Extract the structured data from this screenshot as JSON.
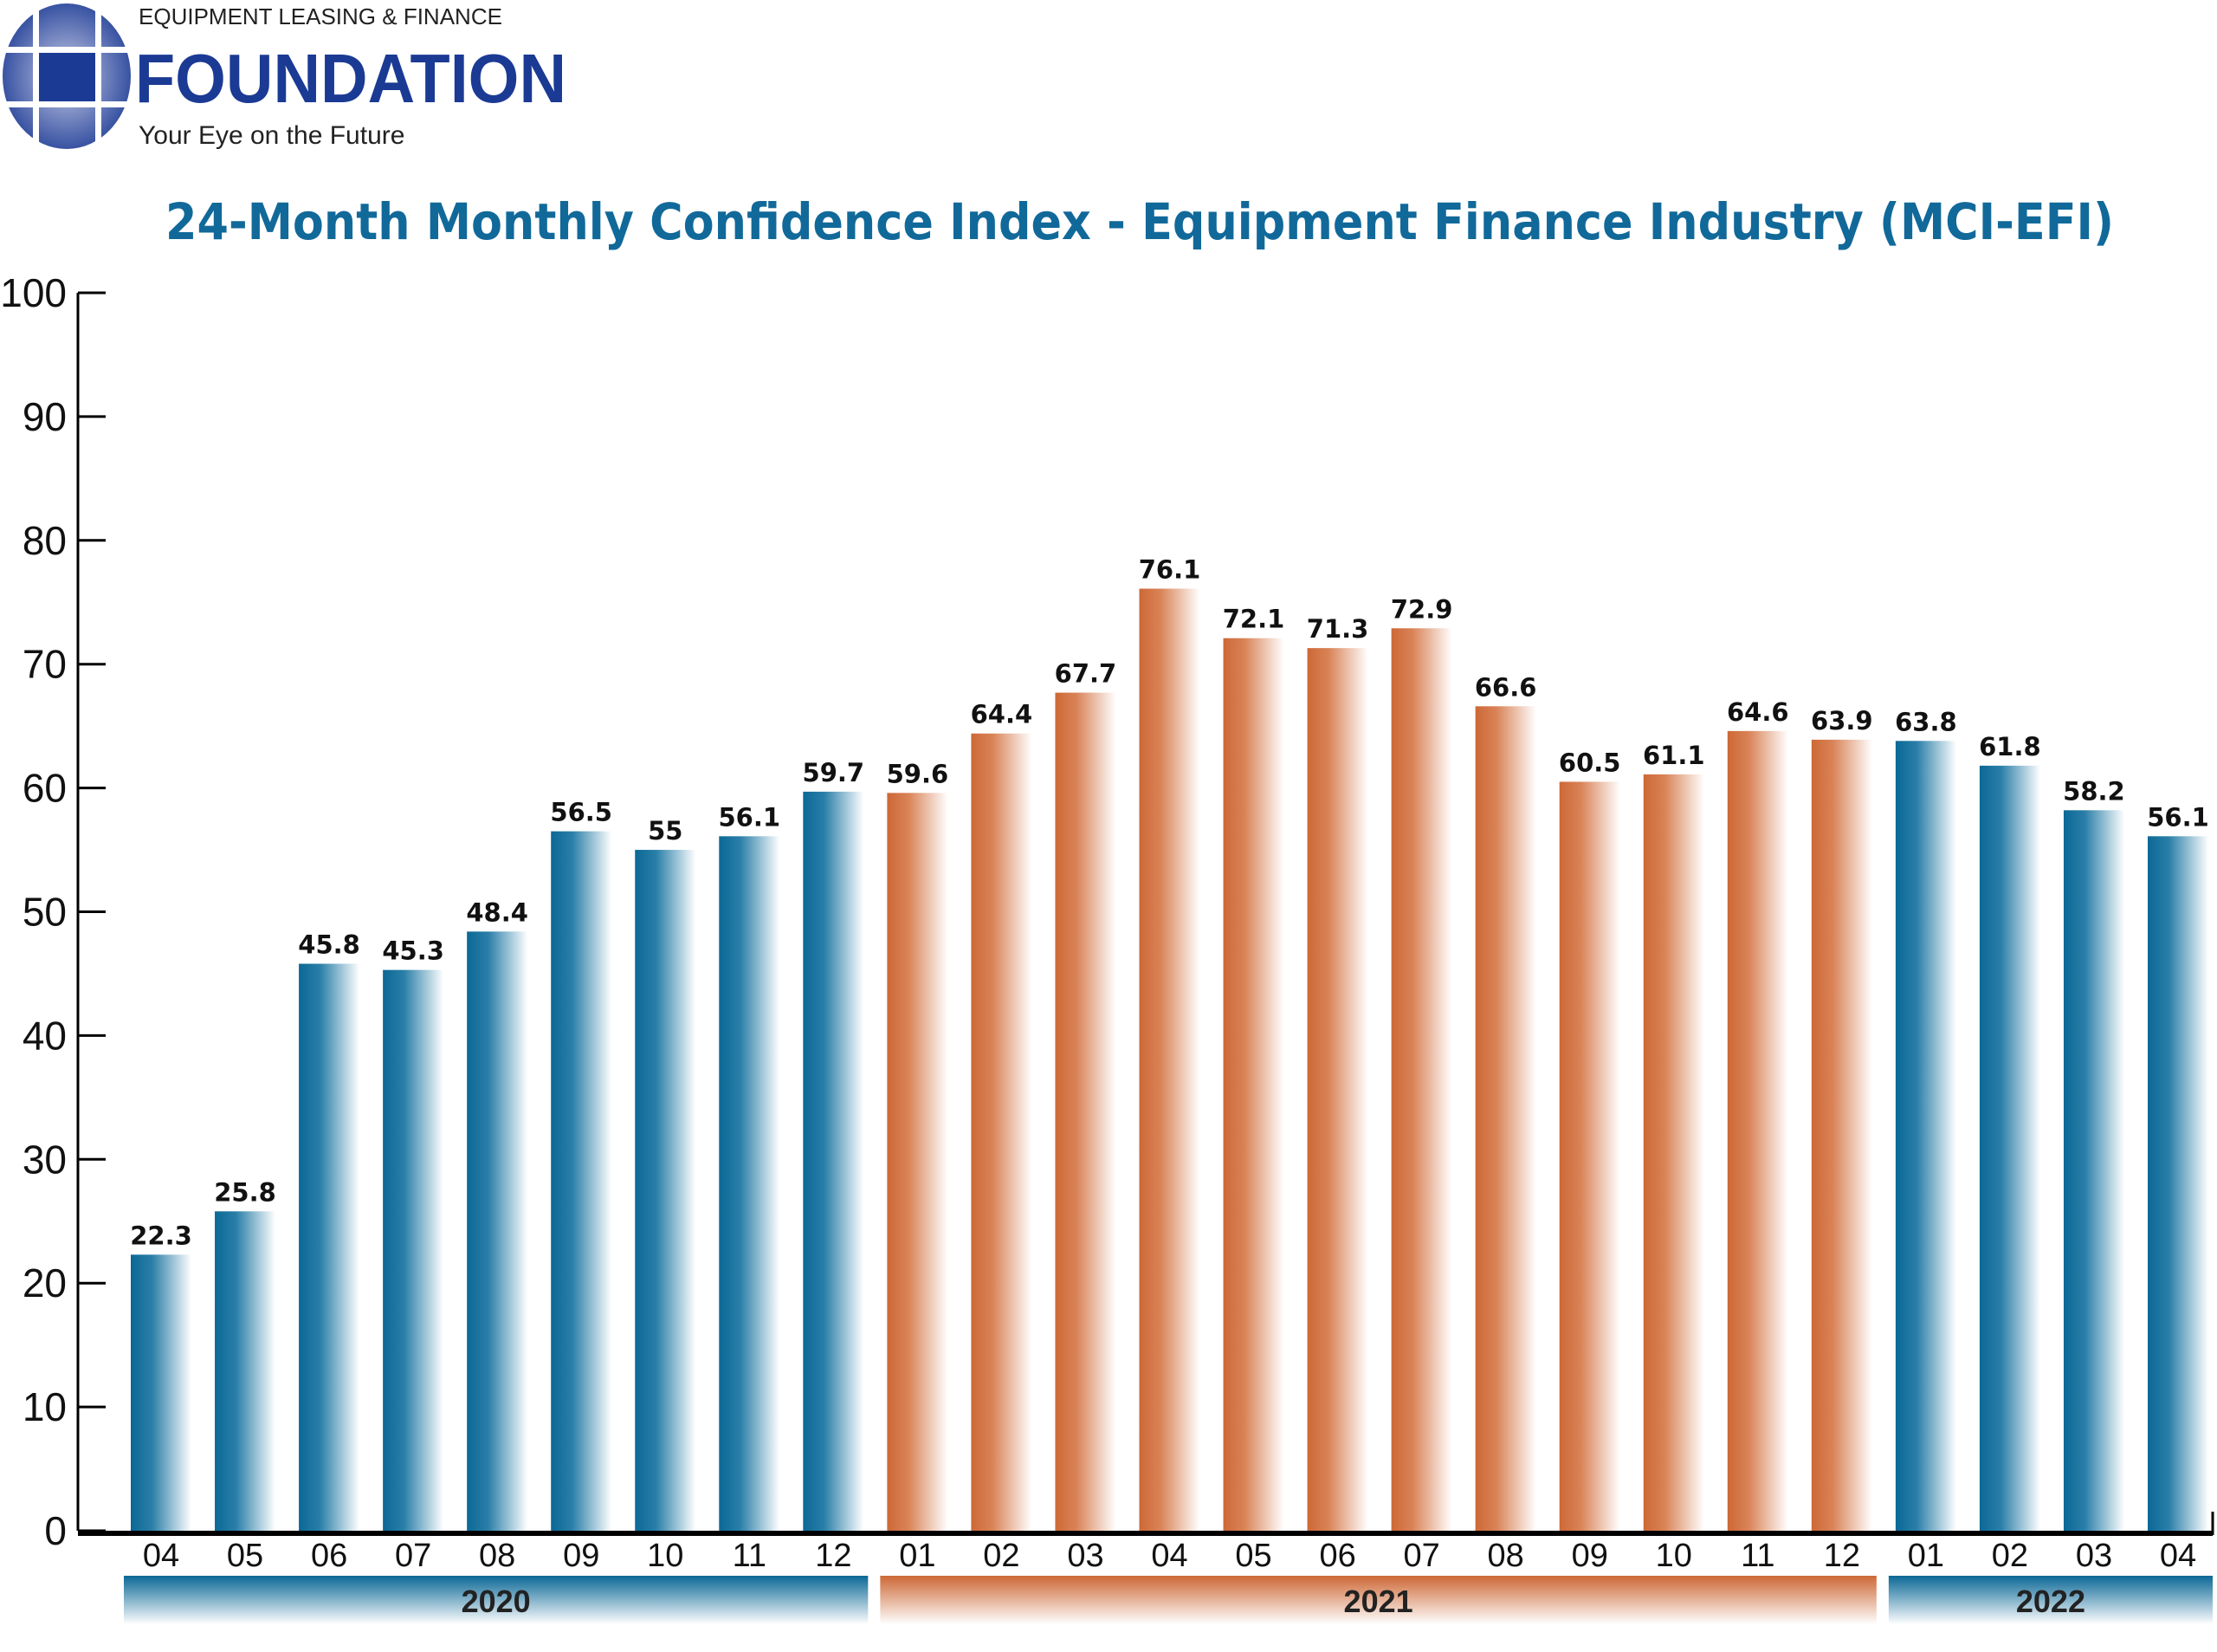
{
  "logo": {
    "line1": "EQUIPMENT LEASING & FINANCE",
    "line2": "FOUNDATION",
    "tagline": "Your Eye on the Future",
    "color": "#1b3a94"
  },
  "chart_data": {
    "type": "bar",
    "title": "24-Month Monthly Confidence Index - Equipment Finance Industry (MCI-EFI)",
    "xlabel": "",
    "ylabel": "",
    "ylim": [
      0,
      100
    ],
    "yticks": [
      0,
      10,
      20,
      30,
      40,
      50,
      60,
      70,
      80,
      90,
      100
    ],
    "grid": false,
    "categories": [
      "04",
      "05",
      "06",
      "07",
      "08",
      "09",
      "10",
      "11",
      "12",
      "01",
      "02",
      "03",
      "04",
      "05",
      "06",
      "07",
      "08",
      "09",
      "10",
      "11",
      "12",
      "01",
      "02",
      "03",
      "04"
    ],
    "values": [
      22.3,
      25.8,
      45.8,
      45.3,
      48.4,
      56.5,
      55,
      56.1,
      59.7,
      59.6,
      64.4,
      67.7,
      76.1,
      72.1,
      71.3,
      72.9,
      66.6,
      60.5,
      61.1,
      64.6,
      63.9,
      63.8,
      61.8,
      58.2,
      56.1
    ],
    "years": [
      {
        "label": "2020",
        "months": 9,
        "color": "#0b6896"
      },
      {
        "label": "2021",
        "months": 12,
        "color": "#cd6836"
      },
      {
        "label": "2022",
        "months": 4,
        "color": "#0b6896"
      }
    ],
    "colors": {
      "title": "#11699a",
      "blue": "#0b6896",
      "orange": "#cd6836"
    }
  }
}
